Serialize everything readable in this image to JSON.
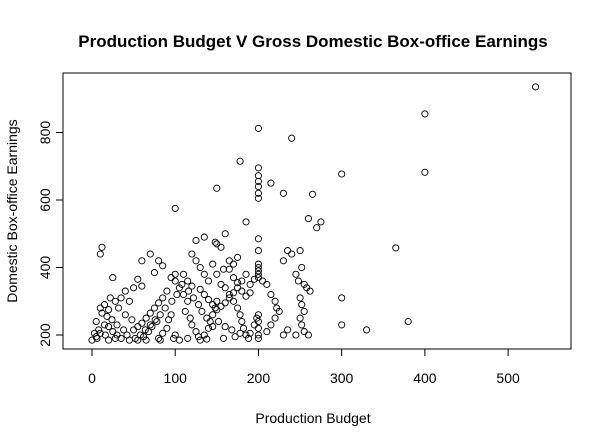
{
  "chart_data": {
    "type": "scatter",
    "title": "Production Budget V Gross Domestic Box-office Earnings",
    "xlabel": "Production Budget",
    "ylabel": "Domestic Box-office Earnings",
    "xlim": [
      0,
      535
    ],
    "ylim": [
      183,
      940
    ],
    "xticks": [
      0,
      100,
      200,
      300,
      400,
      500
    ],
    "yticks": [
      200,
      400,
      600,
      800
    ],
    "grid": false,
    "marker": "open-circle",
    "points": [
      [
        533,
        935
      ],
      [
        400,
        855
      ],
      [
        400,
        682
      ],
      [
        300,
        677
      ],
      [
        200,
        812
      ],
      [
        240,
        783
      ],
      [
        178,
        715
      ],
      [
        150,
        635
      ],
      [
        200,
        695
      ],
      [
        200,
        672
      ],
      [
        200,
        655
      ],
      [
        200,
        640
      ],
      [
        200,
        620
      ],
      [
        200,
        605
      ],
      [
        230,
        620
      ],
      [
        215,
        650
      ],
      [
        265,
        617
      ],
      [
        100,
        575
      ],
      [
        185,
        535
      ],
      [
        260,
        545
      ],
      [
        275,
        535
      ],
      [
        270,
        518
      ],
      [
        365,
        458
      ],
      [
        380,
        240
      ],
      [
        330,
        215
      ],
      [
        300,
        310
      ],
      [
        300,
        230
      ],
      [
        12,
        460
      ],
      [
        10,
        440
      ],
      [
        70,
        440
      ],
      [
        60,
        420
      ],
      [
        80,
        420
      ],
      [
        85,
        405
      ],
      [
        75,
        385
      ],
      [
        55,
        365
      ],
      [
        60,
        345
      ],
      [
        50,
        340
      ],
      [
        25,
        370
      ],
      [
        40,
        330
      ],
      [
        35,
        310
      ],
      [
        45,
        300
      ],
      [
        15,
        290
      ],
      [
        10,
        280
      ],
      [
        20,
        275
      ],
      [
        5,
        240
      ],
      [
        15,
        230
      ],
      [
        20,
        225
      ],
      [
        25,
        210
      ],
      [
        30,
        200
      ],
      [
        35,
        190
      ],
      [
        0,
        185
      ],
      [
        5,
        195
      ],
      [
        10,
        205
      ],
      [
        20,
        185
      ],
      [
        28,
        190
      ],
      [
        42,
        200
      ],
      [
        50,
        215
      ],
      [
        55,
        185
      ],
      [
        62,
        195
      ],
      [
        68,
        210
      ],
      [
        72,
        225
      ],
      [
        78,
        240
      ],
      [
        80,
        190
      ],
      [
        85,
        205
      ],
      [
        90,
        220
      ],
      [
        92,
        245
      ],
      [
        95,
        260
      ],
      [
        98,
        190
      ],
      [
        100,
        200
      ],
      [
        100,
        380
      ],
      [
        100,
        360
      ],
      [
        95,
        370
      ],
      [
        105,
        340
      ],
      [
        110,
        320
      ],
      [
        115,
        300
      ],
      [
        112,
        270
      ],
      [
        118,
        250
      ],
      [
        120,
        230
      ],
      [
        125,
        210
      ],
      [
        128,
        195
      ],
      [
        130,
        185
      ],
      [
        135,
        200
      ],
      [
        140,
        220
      ],
      [
        142,
        240
      ],
      [
        145,
        260
      ],
      [
        148,
        280
      ],
      [
        150,
        300
      ],
      [
        150,
        470
      ],
      [
        155,
        460
      ],
      [
        148,
        475
      ],
      [
        160,
        500
      ],
      [
        165,
        420
      ],
      [
        170,
        410
      ],
      [
        175,
        430
      ],
      [
        158,
        395
      ],
      [
        150,
        380
      ],
      [
        155,
        350
      ],
      [
        160,
        340
      ],
      [
        165,
        320
      ],
      [
        170,
        300
      ],
      [
        175,
        280
      ],
      [
        178,
        260
      ],
      [
        180,
        240
      ],
      [
        182,
        220
      ],
      [
        185,
        200
      ],
      [
        188,
        190
      ],
      [
        190,
        205
      ],
      [
        195,
        230
      ],
      [
        198,
        250
      ],
      [
        200,
        485
      ],
      [
        200,
        450
      ],
      [
        200,
        410
      ],
      [
        200,
        400
      ],
      [
        200,
        390
      ],
      [
        200,
        380
      ],
      [
        200,
        370
      ],
      [
        205,
        360
      ],
      [
        210,
        350
      ],
      [
        215,
        320
      ],
      [
        220,
        300
      ],
      [
        222,
        280
      ],
      [
        200,
        260
      ],
      [
        200,
        240
      ],
      [
        200,
        220
      ],
      [
        200,
        200
      ],
      [
        200,
        190
      ],
      [
        210,
        210
      ],
      [
        215,
        230
      ],
      [
        220,
        250
      ],
      [
        225,
        270
      ],
      [
        230,
        420
      ],
      [
        235,
        450
      ],
      [
        240,
        440
      ],
      [
        245,
        380
      ],
      [
        248,
        360
      ],
      [
        250,
        450
      ],
      [
        252,
        400
      ],
      [
        255,
        350
      ],
      [
        258,
        340
      ],
      [
        262,
        330
      ],
      [
        250,
        310
      ],
      [
        252,
        290
      ],
      [
        255,
        270
      ],
      [
        250,
        250
      ],
      [
        252,
        230
      ],
      [
        255,
        210
      ],
      [
        245,
        200
      ],
      [
        260,
        200
      ],
      [
        230,
        200
      ],
      [
        235,
        215
      ],
      [
        120,
        440
      ],
      [
        125,
        420
      ],
      [
        130,
        400
      ],
      [
        135,
        380
      ],
      [
        140,
        360
      ],
      [
        125,
        480
      ],
      [
        135,
        490
      ],
      [
        145,
        410
      ],
      [
        110,
        380
      ],
      [
        115,
        360
      ],
      [
        120,
        345
      ],
      [
        90,
        330
      ],
      [
        85,
        310
      ],
      [
        80,
        295
      ],
      [
        75,
        280
      ],
      [
        70,
        265
      ],
      [
        65,
        250
      ],
      [
        60,
        235
      ],
      [
        55,
        225
      ],
      [
        48,
        245
      ],
      [
        40,
        260
      ],
      [
        32,
        280
      ],
      [
        28,
        300
      ],
      [
        22,
        310
      ],
      [
        18,
        255
      ],
      [
        12,
        265
      ],
      [
        8,
        215
      ],
      [
        3,
        205
      ],
      [
        45,
        185
      ],
      [
        65,
        185
      ],
      [
        82,
        185
      ],
      [
        105,
        185
      ],
      [
        115,
        190
      ],
      [
        138,
        188
      ],
      [
        158,
        190
      ],
      [
        172,
        195
      ],
      [
        178,
        205
      ],
      [
        168,
        215
      ],
      [
        160,
        225
      ],
      [
        152,
        240
      ],
      [
        145,
        225
      ],
      [
        138,
        250
      ],
      [
        132,
        270
      ],
      [
        128,
        290
      ],
      [
        122,
        310
      ],
      [
        116,
        330
      ],
      [
        108,
        350
      ],
      [
        102,
        320
      ],
      [
        96,
        300
      ],
      [
        88,
        280
      ],
      [
        82,
        260
      ],
      [
        76,
        245
      ],
      [
        70,
        230
      ],
      [
        64,
        215
      ],
      [
        58,
        200
      ],
      [
        52,
        190
      ],
      [
        38,
        215
      ],
      [
        30,
        230
      ],
      [
        24,
        245
      ],
      [
        16,
        200
      ],
      [
        6,
        190
      ],
      [
        190,
        325
      ],
      [
        185,
        315
      ],
      [
        180,
        330
      ],
      [
        175,
        340
      ],
      [
        170,
        325
      ],
      [
        165,
        310
      ],
      [
        160,
        295
      ],
      [
        155,
        285
      ],
      [
        150,
        275
      ],
      [
        145,
        290
      ],
      [
        140,
        305
      ],
      [
        135,
        320
      ],
      [
        130,
        335
      ],
      [
        190,
        350
      ],
      [
        195,
        365
      ],
      [
        185,
        380
      ],
      [
        180,
        360
      ],
      [
        175,
        355
      ],
      [
        170,
        370
      ],
      [
        165,
        395
      ]
    ]
  }
}
